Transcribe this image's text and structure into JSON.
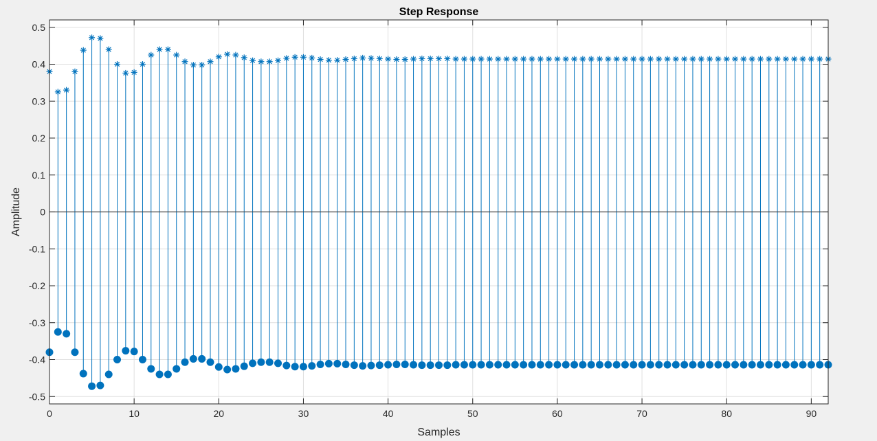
{
  "chart_data": {
    "type": "stem",
    "title": "Step Response",
    "xlabel": "Samples",
    "ylabel": "Amplitude",
    "xlim": [
      0,
      92
    ],
    "ylim": [
      -0.52,
      0.52
    ],
    "xticks": [
      "0",
      "10",
      "20",
      "30",
      "40",
      "50",
      "60",
      "70",
      "80",
      "90"
    ],
    "yticks": [
      "0.5",
      "0.4",
      "0.3",
      "0.2",
      "0.1",
      "0",
      "-0.1",
      "-0.2",
      "-0.3",
      "-0.4",
      "-0.5"
    ],
    "grid": true,
    "color": "#0072bd",
    "series": [
      {
        "marker": "asterisk",
        "x": [
          0,
          1,
          2,
          3,
          4,
          5,
          6,
          7,
          8,
          9,
          10,
          11,
          12,
          13,
          14,
          15,
          16,
          17,
          18,
          19,
          20,
          21,
          22,
          23,
          24,
          25,
          26,
          27,
          28,
          29,
          30,
          31,
          32,
          33,
          34,
          35,
          36,
          37,
          38,
          39,
          40,
          41,
          42,
          43,
          44,
          45,
          46,
          47,
          48,
          49,
          50,
          51,
          52,
          53,
          54,
          55,
          56,
          57,
          58,
          59,
          60,
          61,
          62,
          63,
          64,
          65,
          66,
          67,
          68,
          69,
          70,
          71,
          72,
          73,
          74,
          75,
          76,
          77,
          78,
          79,
          80,
          81,
          82,
          83,
          84,
          85,
          86,
          87,
          88,
          89,
          90,
          91,
          92
        ],
        "values": [
          0.38,
          0.325,
          0.33,
          0.38,
          0.438,
          0.472,
          0.47,
          0.44,
          0.4,
          0.376,
          0.378,
          0.4,
          0.425,
          0.44,
          0.44,
          0.425,
          0.407,
          0.398,
          0.398,
          0.407,
          0.42,
          0.427,
          0.425,
          0.418,
          0.41,
          0.407,
          0.407,
          0.41,
          0.416,
          0.419,
          0.419,
          0.417,
          0.413,
          0.411,
          0.411,
          0.413,
          0.415,
          0.417,
          0.416,
          0.415,
          0.414,
          0.413,
          0.413,
          0.414,
          0.415,
          0.415,
          0.415,
          0.415,
          0.414,
          0.414,
          0.414,
          0.414,
          0.414,
          0.414,
          0.414,
          0.414,
          0.414,
          0.414,
          0.414,
          0.414,
          0.414,
          0.414,
          0.414,
          0.414,
          0.414,
          0.414,
          0.414,
          0.414,
          0.414,
          0.414,
          0.414,
          0.414,
          0.414,
          0.414,
          0.414,
          0.414,
          0.414,
          0.414,
          0.414,
          0.414,
          0.414,
          0.414,
          0.414,
          0.414,
          0.414,
          0.414,
          0.414,
          0.414,
          0.414,
          0.414,
          0.414,
          0.414,
          0.414
        ]
      },
      {
        "marker": "filled-circle",
        "x": [
          0,
          1,
          2,
          3,
          4,
          5,
          6,
          7,
          8,
          9,
          10,
          11,
          12,
          13,
          14,
          15,
          16,
          17,
          18,
          19,
          20,
          21,
          22,
          23,
          24,
          25,
          26,
          27,
          28,
          29,
          30,
          31,
          32,
          33,
          34,
          35,
          36,
          37,
          38,
          39,
          40,
          41,
          42,
          43,
          44,
          45,
          46,
          47,
          48,
          49,
          50,
          51,
          52,
          53,
          54,
          55,
          56,
          57,
          58,
          59,
          60,
          61,
          62,
          63,
          64,
          65,
          66,
          67,
          68,
          69,
          70,
          71,
          72,
          73,
          74,
          75,
          76,
          77,
          78,
          79,
          80,
          81,
          82,
          83,
          84,
          85,
          86,
          87,
          88,
          89,
          90,
          91,
          92
        ],
        "values": [
          -0.38,
          -0.325,
          -0.33,
          -0.38,
          -0.438,
          -0.472,
          -0.47,
          -0.44,
          -0.4,
          -0.376,
          -0.378,
          -0.4,
          -0.425,
          -0.44,
          -0.44,
          -0.425,
          -0.407,
          -0.398,
          -0.398,
          -0.407,
          -0.42,
          -0.427,
          -0.425,
          -0.418,
          -0.41,
          -0.407,
          -0.407,
          -0.41,
          -0.416,
          -0.419,
          -0.419,
          -0.417,
          -0.413,
          -0.411,
          -0.411,
          -0.413,
          -0.415,
          -0.417,
          -0.416,
          -0.415,
          -0.414,
          -0.413,
          -0.413,
          -0.414,
          -0.415,
          -0.415,
          -0.415,
          -0.415,
          -0.414,
          -0.414,
          -0.414,
          -0.414,
          -0.414,
          -0.414,
          -0.414,
          -0.414,
          -0.414,
          -0.414,
          -0.414,
          -0.414,
          -0.414,
          -0.414,
          -0.414,
          -0.414,
          -0.414,
          -0.414,
          -0.414,
          -0.414,
          -0.414,
          -0.414,
          -0.414,
          -0.414,
          -0.414,
          -0.414,
          -0.414,
          -0.414,
          -0.414,
          -0.414,
          -0.414,
          -0.414,
          -0.414,
          -0.414,
          -0.414,
          -0.414,
          -0.414,
          -0.414,
          -0.414,
          -0.414,
          -0.414,
          -0.414,
          -0.414,
          -0.414,
          -0.414
        ]
      }
    ]
  }
}
